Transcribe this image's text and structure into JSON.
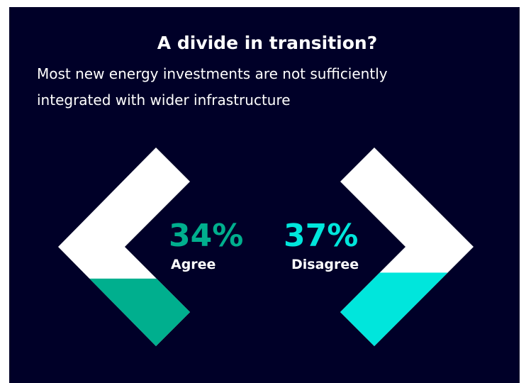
{
  "chart_data": {
    "type": "chevron",
    "title": "A divide in transition?",
    "subtitle": "Most new energy investments are not sufficiently integrated with wider infrastructure",
    "categories": [
      "Agree",
      "Disagree"
    ],
    "values": [
      34,
      37
    ],
    "value_labels": [
      "34%",
      "37%"
    ],
    "colors": [
      "#00af8e",
      "#00e6dc"
    ],
    "ylim": [
      0,
      100
    ]
  }
}
